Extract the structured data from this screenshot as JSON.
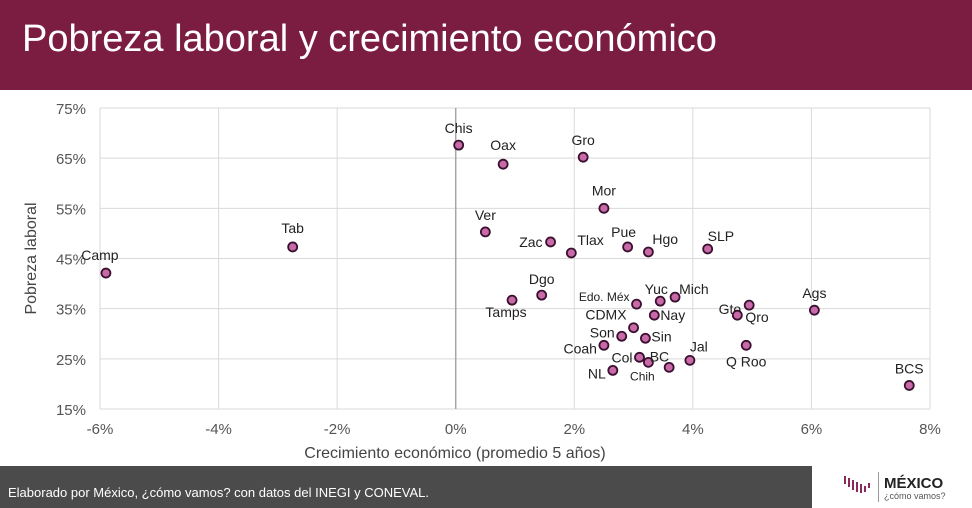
{
  "header": {
    "title": "Pobreza laboral y crecimiento económico"
  },
  "footer": {
    "source": "Elaborado por México, ¿cómo vamos? con datos del INEGI y CONEVAL.",
    "logo_title": "MÉXICO",
    "logo_subtitle": "¿cómo vamos?"
  },
  "colors": {
    "header": "#7b1c41",
    "point": "#c86aa8",
    "point_stroke": "#3a1030"
  },
  "chart_data": {
    "type": "scatter",
    "title": "Pobreza laboral y crecimiento económico",
    "xlabel": "Crecimiento económico (promedio 5 años)",
    "ylabel": "Pobreza laboral",
    "xlim": [
      -6,
      8
    ],
    "ylim": [
      15,
      75
    ],
    "xticks": [
      -6,
      -4,
      -2,
      0,
      2,
      4,
      6,
      8
    ],
    "xtick_labels": [
      "-6%",
      "-4%",
      "-2%",
      "0%",
      "2%",
      "4%",
      "6%",
      "8%"
    ],
    "yticks": [
      15,
      25,
      35,
      45,
      55,
      65,
      75
    ],
    "ytick_labels": [
      "15%",
      "25%",
      "35%",
      "45%",
      "55%",
      "65%",
      "75%"
    ],
    "grid": true,
    "points": [
      {
        "label": "Camp",
        "x": -5.9,
        "y": 42.1
      },
      {
        "label": "Tab",
        "x": -2.75,
        "y": 47.3
      },
      {
        "label": "Chis",
        "x": 0.05,
        "y": 67.6
      },
      {
        "label": "Oax",
        "x": 0.8,
        "y": 63.8
      },
      {
        "label": "Gro",
        "x": 2.15,
        "y": 65.2
      },
      {
        "label": "Mor",
        "x": 2.5,
        "y": 55.0
      },
      {
        "label": "Ver",
        "x": 0.5,
        "y": 50.3
      },
      {
        "label": "Zac",
        "x": 1.6,
        "y": 48.3
      },
      {
        "label": "Tlax",
        "x": 1.95,
        "y": 46.1
      },
      {
        "label": "Pue",
        "x": 2.9,
        "y": 47.3
      },
      {
        "label": "Hgo",
        "x": 3.25,
        "y": 46.3
      },
      {
        "label": "SLP",
        "x": 4.25,
        "y": 46.9
      },
      {
        "label": "Dgo",
        "x": 1.45,
        "y": 37.7
      },
      {
        "label": "Tamps",
        "x": 0.95,
        "y": 36.7
      },
      {
        "label": "Edo. Méx",
        "x": 3.05,
        "y": 35.9
      },
      {
        "label": "Yuc",
        "x": 3.45,
        "y": 36.5
      },
      {
        "label": "Mich",
        "x": 3.7,
        "y": 37.3
      },
      {
        "label": "Nay",
        "x": 3.35,
        "y": 33.7
      },
      {
        "label": "CDMX",
        "x": 3.0,
        "y": 31.2
      },
      {
        "label": "Son",
        "x": 2.8,
        "y": 29.5
      },
      {
        "label": "Sin",
        "x": 3.2,
        "y": 29.1
      },
      {
        "label": "Coah",
        "x": 2.5,
        "y": 27.7
      },
      {
        "label": "Col",
        "x": 3.1,
        "y": 25.3
      },
      {
        "label": "Chih",
        "x": 3.25,
        "y": 24.3
      },
      {
        "label": "BC",
        "x": 3.6,
        "y": 23.3
      },
      {
        "label": "NL",
        "x": 2.65,
        "y": 22.7
      },
      {
        "label": "Jal",
        "x": 3.95,
        "y": 24.7
      },
      {
        "label": "Q Roo",
        "x": 4.9,
        "y": 27.7
      },
      {
        "label": "Gto",
        "x": 4.95,
        "y": 35.7
      },
      {
        "label": "Qro",
        "x": 4.75,
        "y": 33.7
      },
      {
        "label": "Ags",
        "x": 6.05,
        "y": 34.7
      },
      {
        "label": "BCS",
        "x": 7.65,
        "y": 19.7
      }
    ]
  }
}
